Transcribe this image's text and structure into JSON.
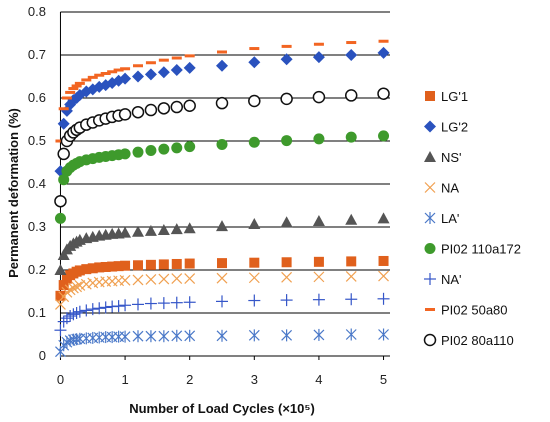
{
  "chart_data": {
    "type": "scatter",
    "xlabel": "Number of Load Cycles (×10⁵)",
    "ylabel": "Permanent deformation (%)",
    "xlim": [
      -0.1,
      5.1
    ],
    "ylim": [
      0,
      0.8
    ],
    "x_ticks": [
      0,
      1,
      2,
      3,
      4,
      5
    ],
    "y_ticks": [
      0,
      0.1,
      0.2,
      0.3,
      0.4,
      0.5,
      0.6,
      0.7,
      0.8
    ],
    "x_tick_labels": [
      "0",
      "1",
      "2",
      "3",
      "4",
      "5"
    ],
    "y_tick_labels": [
      "0",
      "0.1",
      "0.2",
      "0.3",
      "0.4",
      "0.5",
      "0.6",
      "0.7",
      "0.8"
    ],
    "grid": "horizontal",
    "legend_position": "right",
    "series": [
      {
        "name": "LG'1",
        "marker": "square",
        "color": "#E0601C",
        "x": [
          0.0,
          0.05,
          0.1,
          0.15,
          0.2,
          0.25,
          0.3,
          0.4,
          0.5,
          0.6,
          0.7,
          0.8,
          0.9,
          1.0,
          1.2,
          1.4,
          1.6,
          1.8,
          2.0,
          2.5,
          3.0,
          3.5,
          4.0,
          4.5,
          5.0
        ],
        "y": [
          0.14,
          0.165,
          0.18,
          0.188,
          0.192,
          0.196,
          0.199,
          0.202,
          0.204,
          0.206,
          0.207,
          0.208,
          0.209,
          0.21,
          0.211,
          0.212,
          0.213,
          0.214,
          0.215,
          0.216,
          0.217,
          0.218,
          0.219,
          0.22,
          0.221
        ]
      },
      {
        "name": "LG'2",
        "marker": "diamond",
        "color": "#2A52BE",
        "x": [
          0.0,
          0.05,
          0.1,
          0.15,
          0.2,
          0.25,
          0.3,
          0.4,
          0.5,
          0.6,
          0.7,
          0.8,
          0.9,
          1.0,
          1.2,
          1.4,
          1.6,
          1.8,
          2.0,
          2.5,
          3.0,
          3.5,
          4.0,
          4.5,
          5.0
        ],
        "y": [
          0.43,
          0.54,
          0.57,
          0.585,
          0.595,
          0.6,
          0.607,
          0.615,
          0.62,
          0.626,
          0.63,
          0.635,
          0.64,
          0.645,
          0.65,
          0.655,
          0.66,
          0.665,
          0.67,
          0.675,
          0.683,
          0.69,
          0.695,
          0.7,
          0.705
        ]
      },
      {
        "name": "NS'",
        "marker": "triangle",
        "color": "#555555",
        "x": [
          0.0,
          0.05,
          0.1,
          0.15,
          0.2,
          0.25,
          0.3,
          0.4,
          0.5,
          0.6,
          0.7,
          0.8,
          0.9,
          1.0,
          1.2,
          1.4,
          1.6,
          1.8,
          2.0,
          2.5,
          3.0,
          3.5,
          4.0,
          4.5,
          5.0
        ],
        "y": [
          0.2,
          0.235,
          0.248,
          0.256,
          0.262,
          0.266,
          0.27,
          0.274,
          0.277,
          0.28,
          0.282,
          0.284,
          0.285,
          0.287,
          0.289,
          0.291,
          0.293,
          0.295,
          0.297,
          0.302,
          0.307,
          0.311,
          0.314,
          0.317,
          0.32
        ]
      },
      {
        "name": "NA",
        "marker": "x",
        "color": "#F0A050",
        "x": [
          0.0,
          0.05,
          0.1,
          0.15,
          0.2,
          0.25,
          0.3,
          0.4,
          0.5,
          0.6,
          0.7,
          0.8,
          0.9,
          1.0,
          1.2,
          1.4,
          1.6,
          1.8,
          2.0,
          2.5,
          3.0,
          3.5,
          4.0,
          4.5,
          5.0
        ],
        "y": [
          0.12,
          0.138,
          0.148,
          0.154,
          0.158,
          0.161,
          0.164,
          0.167,
          0.17,
          0.172,
          0.173,
          0.174,
          0.175,
          0.176,
          0.177,
          0.178,
          0.179,
          0.18,
          0.18,
          0.181,
          0.182,
          0.183,
          0.184,
          0.185,
          0.186
        ]
      },
      {
        "name": "LA'",
        "marker": "asterisk",
        "color": "#4A78C8",
        "x": [
          0.0,
          0.05,
          0.1,
          0.15,
          0.2,
          0.25,
          0.3,
          0.4,
          0.5,
          0.6,
          0.7,
          0.8,
          0.9,
          1.0,
          1.2,
          1.4,
          1.6,
          1.8,
          2.0,
          2.5,
          3.0,
          3.5,
          4.0,
          4.5,
          5.0
        ],
        "y": [
          0.01,
          0.025,
          0.032,
          0.036,
          0.038,
          0.039,
          0.04,
          0.041,
          0.042,
          0.043,
          0.044,
          0.044,
          0.045,
          0.045,
          0.046,
          0.046,
          0.046,
          0.047,
          0.047,
          0.047,
          0.048,
          0.048,
          0.049,
          0.05,
          0.05
        ]
      },
      {
        "name": "PI02 110a172",
        "marker": "circle-filled",
        "color": "#3E9A2C",
        "x": [
          0.0,
          0.05,
          0.1,
          0.15,
          0.2,
          0.25,
          0.3,
          0.4,
          0.5,
          0.6,
          0.7,
          0.8,
          0.9,
          1.0,
          1.2,
          1.4,
          1.6,
          1.8,
          2.0,
          2.5,
          3.0,
          3.5,
          4.0,
          4.5,
          5.0
        ],
        "y": [
          0.32,
          0.41,
          0.43,
          0.438,
          0.444,
          0.448,
          0.452,
          0.456,
          0.459,
          0.462,
          0.464,
          0.466,
          0.468,
          0.47,
          0.474,
          0.478,
          0.481,
          0.484,
          0.487,
          0.492,
          0.497,
          0.501,
          0.505,
          0.509,
          0.512
        ]
      },
      {
        "name": "NA'",
        "marker": "plus",
        "color": "#3455C8",
        "x": [
          0.0,
          0.05,
          0.1,
          0.15,
          0.2,
          0.25,
          0.3,
          0.4,
          0.5,
          0.6,
          0.7,
          0.8,
          0.9,
          1.0,
          1.2,
          1.4,
          1.6,
          1.8,
          2.0,
          2.5,
          3.0,
          3.5,
          4.0,
          4.5,
          5.0
        ],
        "y": [
          0.06,
          0.08,
          0.088,
          0.093,
          0.097,
          0.1,
          0.103,
          0.106,
          0.109,
          0.111,
          0.113,
          0.115,
          0.116,
          0.118,
          0.12,
          0.122,
          0.123,
          0.124,
          0.125,
          0.127,
          0.129,
          0.13,
          0.131,
          0.132,
          0.133
        ]
      },
      {
        "name": "PI02 50a80",
        "marker": "dash",
        "color": "#F26522",
        "x": [
          0.0,
          0.05,
          0.1,
          0.15,
          0.2,
          0.25,
          0.3,
          0.4,
          0.5,
          0.6,
          0.7,
          0.8,
          0.9,
          1.0,
          1.2,
          1.4,
          1.6,
          1.8,
          2.0,
          2.5,
          3.0,
          3.5,
          4.0,
          4.5,
          5.0
        ],
        "y": [
          0.5,
          0.575,
          0.6,
          0.613,
          0.622,
          0.628,
          0.634,
          0.642,
          0.648,
          0.653,
          0.657,
          0.661,
          0.665,
          0.668,
          0.675,
          0.682,
          0.688,
          0.693,
          0.698,
          0.707,
          0.715,
          0.72,
          0.725,
          0.729,
          0.732
        ]
      },
      {
        "name": "PI02 80a110",
        "marker": "circle-open",
        "color": "#111111",
        "x": [
          0.0,
          0.05,
          0.1,
          0.15,
          0.2,
          0.25,
          0.3,
          0.4,
          0.5,
          0.6,
          0.7,
          0.8,
          0.9,
          1.0,
          1.2,
          1.4,
          1.6,
          1.8,
          2.0,
          2.5,
          3.0,
          3.5,
          4.0,
          4.5,
          5.0
        ],
        "y": [
          0.36,
          0.47,
          0.5,
          0.512,
          0.52,
          0.526,
          0.531,
          0.538,
          0.543,
          0.548,
          0.552,
          0.556,
          0.559,
          0.562,
          0.567,
          0.572,
          0.576,
          0.579,
          0.582,
          0.588,
          0.593,
          0.598,
          0.602,
          0.606,
          0.61
        ]
      }
    ]
  }
}
